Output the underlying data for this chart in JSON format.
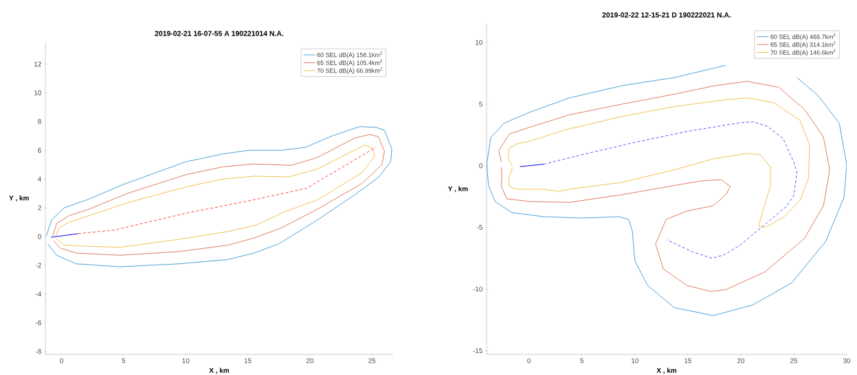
{
  "chart_data": [
    {
      "type": "line",
      "title": "2019-02-21 16-07-55 A 190221014 N.A.",
      "xlabel": "X , km",
      "ylabel": "Y , km",
      "xlim": [
        -1.3,
        26.7
      ],
      "ylim": [
        -8.2,
        13.5
      ],
      "xticks": [
        0,
        5,
        10,
        15,
        20,
        25
      ],
      "yticks": [
        -8,
        -6,
        -4,
        -2,
        0,
        2,
        4,
        6,
        8,
        10,
        12
      ],
      "legend": "top right",
      "grid": false,
      "series": [
        {
          "name": "60 SEL dB(A)  156.1km$^{2}$",
          "color": "#4aa0d5",
          "x": [
            -1.22,
            -0.8,
            0.2,
            2.2,
            4.9,
            10.0,
            13.0,
            15.1,
            17.7,
            19.6,
            21.8,
            24.0,
            25.3,
            26.0,
            26.6,
            26.5,
            25.5,
            23.6,
            20.6,
            17.5,
            15.5,
            13.4,
            9.4,
            4.7,
            1.2,
            -0.4,
            -1.1
          ],
          "values": [
            0.05,
            1.15,
            2.0,
            2.6,
            3.6,
            5.2,
            5.75,
            6.0,
            6.0,
            6.2,
            7.0,
            7.65,
            7.6,
            7.4,
            6.1,
            5.2,
            4.1,
            2.9,
            1.15,
            -0.5,
            -1.15,
            -1.6,
            -1.9,
            -2.1,
            -1.9,
            -1.3,
            -0.5
          ]
        },
        {
          "name": "65 SEL dB(A)  105.4km$^{2}$",
          "color": "#e07a5f",
          "x": [
            -0.7,
            -0.4,
            0.6,
            2.2,
            5.3,
            10.0,
            13.0,
            15.5,
            18.5,
            20.6,
            23.6,
            24.8,
            25.5,
            26.0,
            25.8,
            24.2,
            20.6,
            17.7,
            15.5,
            13.4,
            9.4,
            4.7,
            1.2,
            -0.1,
            -0.65
          ],
          "values": [
            0.05,
            0.9,
            1.45,
            1.9,
            3.0,
            4.3,
            4.85,
            5.05,
            4.95,
            5.5,
            6.85,
            7.1,
            6.95,
            5.95,
            5.0,
            3.7,
            1.9,
            0.6,
            -0.1,
            -0.6,
            -1.05,
            -1.3,
            -1.15,
            -0.8,
            -0.3
          ]
        },
        {
          "name": "70 SEL dB(A)  66.99km$^{2}$",
          "color": "#f0c050",
          "x": [
            -0.45,
            -0.2,
            0.6,
            2.2,
            5.3,
            10.0,
            13.0,
            15.5,
            18.3,
            20.6,
            23.0,
            24.4,
            25.1,
            25.2,
            24.2,
            20.6,
            17.9,
            15.7,
            13.4,
            9.4,
            4.7,
            1.4,
            0.2,
            -0.4
          ],
          "values": [
            0.05,
            0.6,
            1.0,
            1.45,
            2.35,
            3.45,
            4.0,
            4.2,
            4.15,
            4.7,
            5.75,
            6.35,
            6.15,
            5.55,
            4.45,
            2.55,
            1.7,
            0.8,
            0.35,
            -0.2,
            -0.75,
            -0.65,
            -0.6,
            -0.15
          ]
        },
        {
          "color": "#0000ff",
          "x": [
            -0.85,
            1.35
          ],
          "values": [
            -0.05,
            0.2
          ]
        },
        {
          "color": "#ff4040",
          "line_style": "dashed",
          "x": [
            1.35,
            4.3,
            10.0,
            14.9,
            19.75,
            20.4,
            25.3
          ],
          "values": [
            0.2,
            0.46,
            1.62,
            2.45,
            3.36,
            3.7,
            6.2
          ]
        }
      ]
    },
    {
      "type": "line",
      "title": "2019-02-22 12-15-21 D 190222021 N.A.",
      "xlabel": "X , km",
      "ylabel": "Y , km",
      "xlim": [
        -4,
        30
      ],
      "ylim": [
        -15.3,
        11.5
      ],
      "xticks": [
        0,
        5,
        10,
        15,
        20,
        25,
        30
      ],
      "yticks": [
        -15,
        -10,
        -5,
        0,
        5,
        10
      ],
      "legend": "top right",
      "grid": false,
      "series": [
        {
          "name": "60 SEL dB(A)  468.7km$^{2}$",
          "color": "#4aa0d5",
          "x": [
            25.3,
            27.3,
            29.3,
            30.0,
            29.75,
            28.0,
            24.8,
            21.1,
            17.4,
            13.7,
            11.2,
            10.0,
            9.75,
            9.4,
            8.5,
            5.1,
            1.4,
            -1.6,
            -3.2,
            -3.8,
            -3.95,
            -3.95,
            -3.6,
            -2.35,
            0.1,
            3.8,
            8.8,
            13.7,
            18.6
          ],
          "values": [
            7.15,
            5.7,
            3.45,
            0.1,
            -2.55,
            -6.15,
            -9.5,
            -11.3,
            -12.15,
            -11.5,
            -9.7,
            -7.7,
            -5.25,
            -4.35,
            -4.13,
            -4.24,
            -4.13,
            -3.8,
            -2.9,
            -1.67,
            -0.33,
            0.33,
            2.3,
            3.45,
            4.35,
            5.5,
            6.5,
            7.15,
            8.15
          ]
        },
        {
          "name": "65 SEL dB(A)  314.1km$^{2}$",
          "color": "#e07a5f",
          "x": [
            -2.6,
            -2.85,
            -1.85,
            0.1,
            3.8,
            8.8,
            13.7,
            17.4,
            20.6,
            23.6,
            26.0,
            27.8,
            28.4,
            27.8,
            26.0,
            22.3,
            18.6,
            17.2,
            14.9,
            12.7,
            11.95,
            12.95,
            14.9,
            17.4,
            18.6,
            19.0,
            18.15,
            16.2,
            12.5,
            8.8,
            3.8,
            0.1,
            -2.1,
            -2.6,
            -2.55,
            -2.6
          ],
          "values": [
            0.33,
            1.23,
            2.57,
            3.13,
            4.13,
            5.0,
            5.8,
            6.47,
            6.85,
            6.36,
            4.58,
            2.34,
            -0.33,
            -3.24,
            -5.9,
            -8.6,
            -10.04,
            -10.2,
            -9.7,
            -8.37,
            -6.36,
            -4.35,
            -3.68,
            -3.24,
            -2.34,
            -1.67,
            -1.12,
            -1.23,
            -1.79,
            -2.34,
            -2.97,
            -2.9,
            -2.68,
            -1.67,
            -0.78,
            -0.11
          ]
        },
        {
          "name": "70 SEL dB(A)  146.6km$^{2}$",
          "color": "#f0c050",
          "x": [
            -1.6,
            -1.98,
            -1.85,
            -1.1,
            0.1,
            1.36,
            3.33,
            8.8,
            13.7,
            18.6,
            20.6,
            23.1,
            25.6,
            26.5,
            26.4,
            25.6,
            24.1,
            22.3,
            21.7,
            22.0,
            22.8,
            22.8,
            21.85,
            20.6,
            17.4,
            13.7,
            8.8,
            3.8,
            2.84,
            1.36,
            0.37,
            -1.1,
            -1.85,
            -1.9,
            -1.55
          ],
          "values": [
            0.0,
            0.56,
            1.45,
            1.79,
            2.0,
            2.34,
            2.9,
            4.0,
            4.8,
            5.36,
            5.5,
            5.13,
            3.68,
            1.67,
            -1.0,
            -2.8,
            -4.13,
            -5.0,
            -4.9,
            -3.9,
            -1.67,
            -0.11,
            0.9,
            1.0,
            0.56,
            -0.33,
            -1.34,
            -1.9,
            -2.08,
            -1.9,
            -1.9,
            -1.9,
            -1.67,
            -1.0,
            -0.11
          ]
        },
        {
          "color": "#0000ff",
          "x": [
            -0.85,
            1.4
          ],
          "values": [
            -0.07,
            0.13
          ]
        },
        {
          "color": "#5555ff",
          "line_style": "dashed",
          "x": [
            1.4,
            5.0,
            10.0,
            15.0,
            20.0,
            21.2,
            22.5,
            24.0,
            25.0,
            25.3,
            25.0,
            24.3,
            22.5,
            20.0,
            18.5,
            17.3,
            15.5,
            13.0
          ],
          "values": [
            0.13,
            0.9,
            1.9,
            2.8,
            3.5,
            3.56,
            3.2,
            2.2,
            0.3,
            -0.5,
            -2.4,
            -3.3,
            -4.6,
            -6.4,
            -7.2,
            -7.5,
            -7.0,
            -6.0
          ]
        }
      ]
    }
  ]
}
